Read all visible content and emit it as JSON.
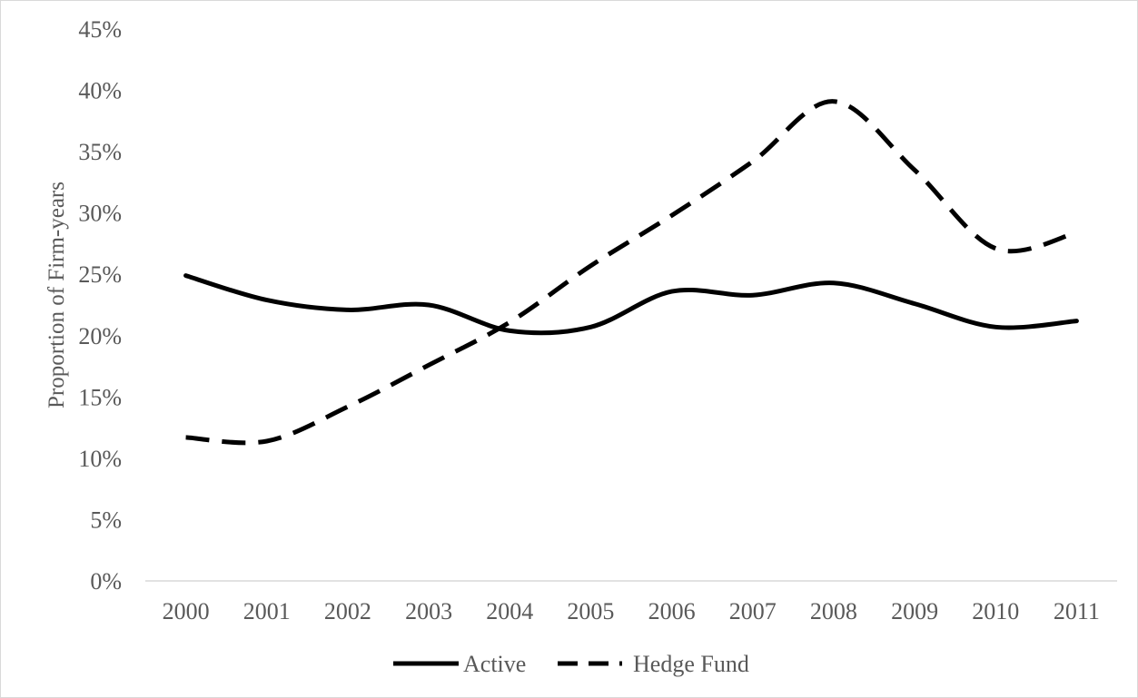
{
  "chart_data": {
    "type": "line",
    "title": "",
    "xlabel": "",
    "ylabel": "Proportion of Firm-years",
    "categories": [
      "2000",
      "2001",
      "2002",
      "2003",
      "2004",
      "2005",
      "2006",
      "2007",
      "2008",
      "2009",
      "2010",
      "2011"
    ],
    "y_ticks": [
      "0%",
      "5%",
      "10%",
      "15%",
      "20%",
      "25%",
      "30%",
      "35%",
      "40%",
      "45%"
    ],
    "ylim": [
      0,
      0.45
    ],
    "grid": false,
    "legend_position": "bottom",
    "series": [
      {
        "name": "Active",
        "style": "solid",
        "color": "#000000",
        "values": [
          0.249,
          0.229,
          0.221,
          0.225,
          0.204,
          0.207,
          0.236,
          0.233,
          0.243,
          0.226,
          0.207,
          0.212
        ]
      },
      {
        "name": "Hedge Fund",
        "style": "dashed",
        "color": "#000000",
        "values": [
          0.117,
          0.114,
          0.142,
          0.176,
          0.211,
          0.257,
          0.298,
          0.342,
          0.391,
          0.335,
          0.271,
          0.284
        ]
      }
    ],
    "axis_color": "#d9d9d9",
    "text_color": "#595959"
  }
}
